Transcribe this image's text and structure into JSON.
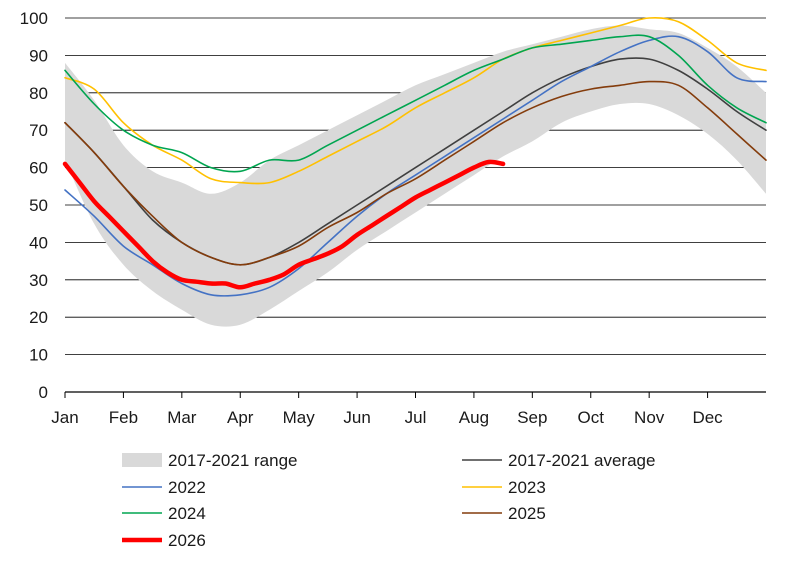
{
  "chart_data": {
    "type": "line",
    "title": "",
    "xlabel": "",
    "ylabel": "",
    "ylim": [
      0,
      100
    ],
    "yticks": [
      0,
      10,
      20,
      30,
      40,
      50,
      60,
      70,
      80,
      90,
      100
    ],
    "xlim": [
      0,
      12
    ],
    "months": [
      "Jan",
      "Feb",
      "Mar",
      "Apr",
      "May",
      "Jun",
      "Jul",
      "Aug",
      "Sep",
      "Oct",
      "Nov",
      "Dec"
    ],
    "grid": "horizontal",
    "legend_position": "bottom",
    "range": {
      "name": "2017-2021 range",
      "color": "#d9d9d9",
      "x": [
        0,
        0.5,
        1,
        1.5,
        2,
        2.5,
        3,
        3.5,
        4,
        4.5,
        5,
        5.5,
        6,
        6.5,
        7,
        7.5,
        8,
        8.5,
        9,
        9.5,
        10,
        10.5,
        11,
        11.5,
        12
      ],
      "low": [
        62,
        45,
        34,
        27,
        22,
        18,
        18,
        22,
        27,
        32,
        38,
        43,
        48,
        53,
        58,
        63,
        67,
        72,
        75,
        77,
        77,
        74,
        69,
        62,
        53
      ],
      "high": [
        88,
        78,
        66,
        59,
        56,
        53,
        56,
        62,
        66,
        70,
        74,
        78,
        82,
        85,
        88,
        91,
        93,
        95,
        97,
        98,
        97,
        96,
        92,
        87,
        80
      ]
    },
    "series": [
      {
        "name": "2017-2021 average",
        "color": "#404040",
        "width": 1.6,
        "x": [
          0,
          0.5,
          1,
          1.5,
          2,
          2.5,
          3,
          3.5,
          4,
          4.5,
          5,
          5.5,
          6,
          6.5,
          7,
          7.5,
          8,
          8.5,
          9,
          9.5,
          10,
          10.5,
          11,
          11.5,
          12
        ],
        "values": [
          72,
          64,
          55,
          46,
          40,
          36,
          34,
          36,
          40,
          45,
          50,
          55,
          60,
          65,
          70,
          75,
          80,
          84,
          87,
          89,
          89,
          86,
          81,
          75,
          70
        ]
      },
      {
        "name": "2022",
        "color": "#4472c4",
        "width": 1.6,
        "x": [
          0,
          0.5,
          1,
          1.5,
          2,
          2.5,
          3,
          3.5,
          4,
          4.5,
          5,
          5.5,
          6,
          6.5,
          7,
          7.5,
          8,
          8.5,
          9,
          9.5,
          10,
          10.5,
          11,
          11.5,
          12
        ],
        "values": [
          54,
          47,
          39,
          34,
          29,
          26,
          26,
          28,
          33,
          40,
          47,
          53,
          58,
          63,
          68,
          73,
          78,
          83,
          87,
          91,
          94,
          95,
          91,
          84,
          83
        ]
      },
      {
        "name": "2023",
        "color": "#ffc000",
        "width": 1.6,
        "x": [
          0,
          0.5,
          1,
          1.5,
          2,
          2.5,
          3,
          3.5,
          4,
          4.5,
          5,
          5.5,
          6,
          6.5,
          7,
          7.5,
          8,
          8.5,
          9,
          9.5,
          10,
          10.5,
          11,
          11.5,
          12
        ],
        "values": [
          84,
          81,
          72,
          66,
          62,
          57,
          56,
          56,
          59,
          63,
          67,
          71,
          76,
          80,
          84,
          89,
          92,
          94,
          96,
          98,
          100,
          99,
          94,
          88,
          86
        ]
      },
      {
        "name": "2024",
        "color": "#00a550",
        "width": 1.6,
        "x": [
          0,
          0.5,
          1,
          1.5,
          2,
          2.5,
          3,
          3.5,
          4,
          4.5,
          5,
          5.5,
          6,
          6.5,
          7,
          7.5,
          8,
          8.5,
          9,
          9.5,
          10,
          10.5,
          11,
          11.5,
          12
        ],
        "values": [
          86,
          77,
          70,
          66,
          64,
          60,
          59,
          62,
          62,
          66,
          70,
          74,
          78,
          82,
          86,
          89,
          92,
          93,
          94,
          95,
          95,
          90,
          82,
          76,
          72
        ]
      },
      {
        "name": "2025",
        "color": "#843c0c",
        "width": 1.6,
        "x": [
          0,
          0.5,
          1,
          1.5,
          2,
          2.5,
          3,
          3.5,
          4,
          4.5,
          5,
          5.5,
          6,
          6.5,
          7,
          7.5,
          8,
          8.5,
          9,
          9.5,
          10,
          10.5,
          11,
          11.5,
          12
        ],
        "values": [
          72,
          64,
          55,
          47,
          40,
          36,
          34,
          36,
          39,
          44,
          48,
          53,
          57,
          62,
          67,
          72,
          76,
          79,
          81,
          82,
          83,
          82,
          76,
          69,
          62
        ]
      },
      {
        "name": "2026",
        "color": "#ff0000",
        "width": 4.5,
        "x": [
          0,
          0.25,
          0.5,
          0.75,
          1,
          1.25,
          1.5,
          1.75,
          2,
          2.25,
          2.5,
          2.75,
          3,
          3.25,
          3.5,
          3.75,
          4,
          4.25,
          4.5,
          4.75,
          5,
          5.25,
          5.5,
          5.75,
          6,
          6.25,
          6.5,
          6.75,
          7,
          7.25,
          7.5
        ],
        "values": [
          61,
          56,
          51,
          47,
          43,
          39,
          35,
          32,
          30,
          29.5,
          29,
          29,
          28,
          29,
          30,
          31.5,
          34,
          35.5,
          37,
          39,
          42,
          44.5,
          47,
          49.5,
          52,
          54,
          56,
          58,
          60,
          61.5,
          61
        ]
      }
    ],
    "legend": [
      {
        "label": "2017-2021 range",
        "key": "range"
      },
      {
        "label": "2017-2021 average",
        "key": "2017-2021 average"
      },
      {
        "label": "2022",
        "key": "2022"
      },
      {
        "label": "2023",
        "key": "2023"
      },
      {
        "label": "2024",
        "key": "2024"
      },
      {
        "label": "2025",
        "key": "2025"
      },
      {
        "label": "2026",
        "key": "2026"
      }
    ]
  }
}
